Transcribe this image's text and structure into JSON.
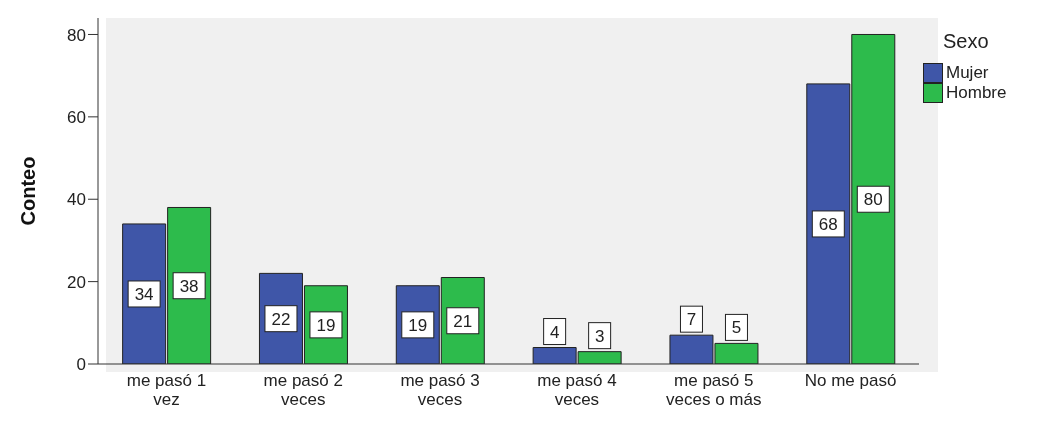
{
  "chart_data": {
    "type": "bar",
    "categories": [
      "me pasó 1 vez",
      "me pasó 2 veces",
      "me pasó 3 veces",
      "me pasó 4 veces",
      "me pasó 5 veces o más",
      "No me pasó"
    ],
    "series": [
      {
        "name": "Mujer",
        "color": "#3f56a8",
        "values": [
          34,
          22,
          19,
          4,
          7,
          68
        ]
      },
      {
        "name": "Hombre",
        "color": "#2dbb4c",
        "values": [
          38,
          19,
          21,
          3,
          5,
          80
        ]
      }
    ],
    "ylabel": "Conteo",
    "legend_title": "Sexo",
    "legend": "right",
    "ylim": [
      0,
      84
    ],
    "yticks": [
      0,
      20,
      40,
      60,
      80
    ],
    "grid": false,
    "data_labels": true
  }
}
